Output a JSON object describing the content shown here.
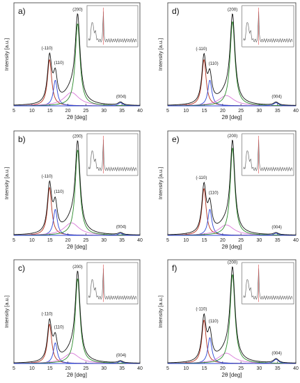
{
  "colors": {
    "total": "#111111",
    "peak_110m": "#b5321f",
    "peak_110": "#2c46d6",
    "amorphous": "#d97ad9",
    "peak_200": "#2a8a2a",
    "peak_004": "#2c46d6",
    "inset_line": "#555555",
    "inset_marker": "#e06060"
  },
  "xlabel": "2θ [deg]",
  "ylabel": "Intensity [a.u.]",
  "xticks": [
    "5",
    "10",
    "15",
    "20",
    "25",
    "30",
    "35",
    "40"
  ],
  "peak_labels": [
    "(-110)",
    "(110)",
    "(200)",
    "(004)"
  ],
  "chart_data": [
    {
      "panel": "a)",
      "type": "line",
      "xlim": [
        5,
        40
      ],
      "peaks": [
        {
          "name": "(-110)",
          "center": 14.9,
          "height": 0.45,
          "width": 1.4
        },
        {
          "name": "(110)",
          "center": 16.5,
          "height": 0.25,
          "width": 1.3
        },
        {
          "name": "amorphous",
          "center": 21.0,
          "height": 0.13,
          "width": 5.0
        },
        {
          "name": "(200)",
          "center": 22.7,
          "height": 0.8,
          "width": 1.6
        },
        {
          "name": "(004)",
          "center": 34.6,
          "height": 0.03,
          "width": 1.6
        }
      ]
    },
    {
      "panel": "b)",
      "type": "line",
      "xlim": [
        5,
        40
      ],
      "peaks": [
        {
          "name": "(-110)",
          "center": 14.9,
          "height": 0.46,
          "width": 1.4
        },
        {
          "name": "(110)",
          "center": 16.5,
          "height": 0.25,
          "width": 1.3
        },
        {
          "name": "amorphous",
          "center": 21.0,
          "height": 0.12,
          "width": 5.0
        },
        {
          "name": "(200)",
          "center": 22.7,
          "height": 0.82,
          "width": 1.6
        },
        {
          "name": "(004)",
          "center": 34.6,
          "height": 0.02,
          "width": 1.6
        }
      ]
    },
    {
      "panel": "c)",
      "type": "line",
      "xlim": [
        5,
        40
      ],
      "peaks": [
        {
          "name": "(-110)",
          "center": 14.9,
          "height": 0.38,
          "width": 1.4
        },
        {
          "name": "(110)",
          "center": 16.5,
          "height": 0.2,
          "width": 1.3
        },
        {
          "name": "amorphous",
          "center": 21.0,
          "height": 0.1,
          "width": 5.0
        },
        {
          "name": "(200)",
          "center": 22.7,
          "height": 0.82,
          "width": 1.6
        },
        {
          "name": "(004)",
          "center": 34.6,
          "height": 0.02,
          "width": 1.6
        }
      ]
    },
    {
      "panel": "d)",
      "type": "line",
      "xlim": [
        5,
        40
      ],
      "peaks": [
        {
          "name": "(-110)",
          "center": 14.9,
          "height": 0.45,
          "width": 1.4
        },
        {
          "name": "(110)",
          "center": 16.5,
          "height": 0.25,
          "width": 1.3
        },
        {
          "name": "amorphous",
          "center": 21.0,
          "height": 0.1,
          "width": 5.0
        },
        {
          "name": "(200)",
          "center": 22.7,
          "height": 0.82,
          "width": 1.6
        },
        {
          "name": "(004)",
          "center": 34.6,
          "height": 0.03,
          "width": 1.6
        }
      ]
    },
    {
      "panel": "e)",
      "type": "line",
      "xlim": [
        5,
        40
      ],
      "peaks": [
        {
          "name": "(-110)",
          "center": 14.9,
          "height": 0.45,
          "width": 1.4
        },
        {
          "name": "(110)",
          "center": 16.5,
          "height": 0.25,
          "width": 1.3
        },
        {
          "name": "amorphous",
          "center": 21.0,
          "height": 0.1,
          "width": 5.0
        },
        {
          "name": "(200)",
          "center": 22.7,
          "height": 0.84,
          "width": 1.5
        },
        {
          "name": "(004)",
          "center": 34.6,
          "height": 0.02,
          "width": 1.6
        }
      ]
    },
    {
      "panel": "f)",
      "type": "line",
      "xlim": [
        5,
        40
      ],
      "peaks": [
        {
          "name": "(-110)",
          "center": 14.9,
          "height": 0.42,
          "width": 1.4
        },
        {
          "name": "(110)",
          "center": 16.5,
          "height": 0.25,
          "width": 1.3
        },
        {
          "name": "amorphous",
          "center": 21.0,
          "height": 0.1,
          "width": 5.0
        },
        {
          "name": "(200)",
          "center": 22.7,
          "height": 0.86,
          "width": 1.6
        },
        {
          "name": "(004)",
          "center": 34.6,
          "height": 0.04,
          "width": 1.6
        }
      ]
    }
  ]
}
